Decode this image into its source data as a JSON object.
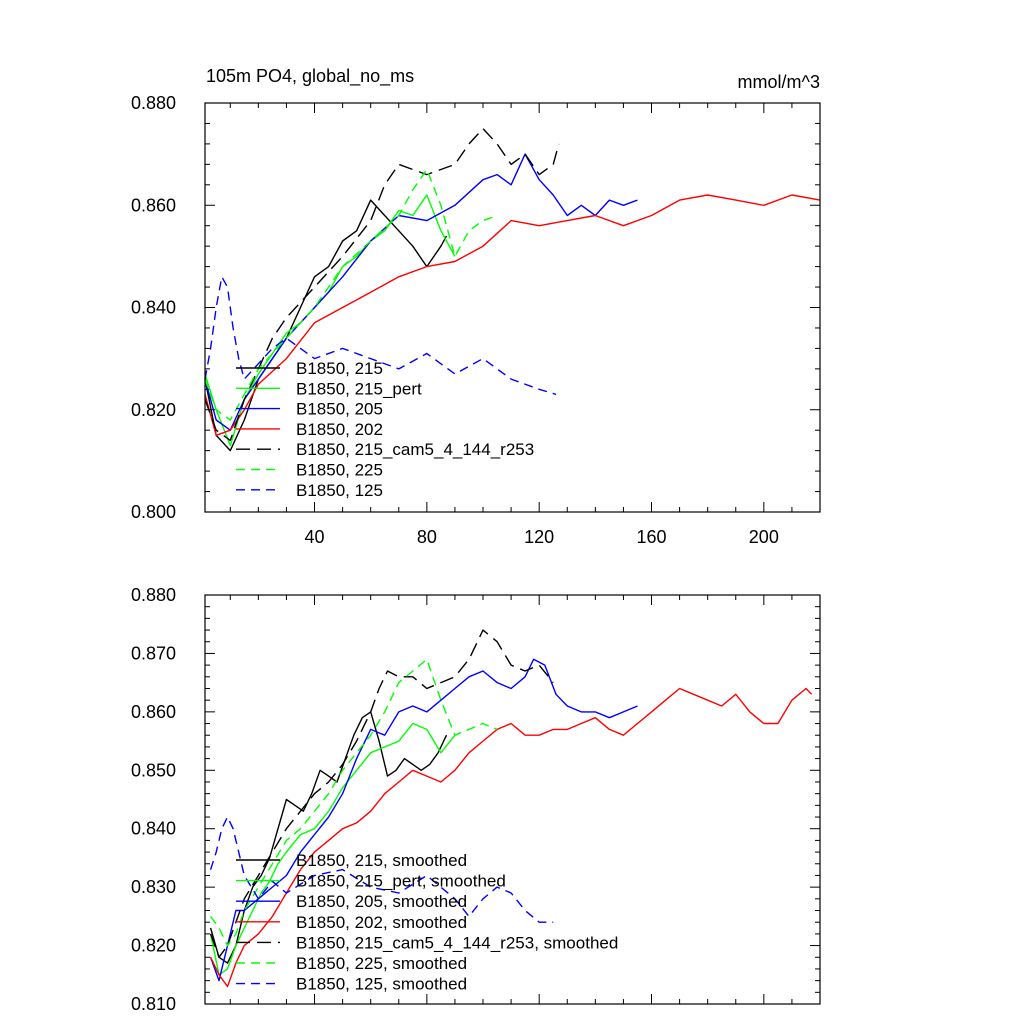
{
  "chart_data": [
    {
      "type": "line",
      "title": "105m PO4, global_no_ms",
      "units": "mmol/m^3",
      "xlim": [
        1,
        220
      ],
      "ylim": [
        0.8,
        0.88
      ],
      "xticks": [
        40,
        80,
        120,
        160,
        200
      ],
      "xtick_labels": [
        "40",
        "80",
        "120",
        "160",
        "200"
      ],
      "yticks": [
        0.8,
        0.82,
        0.84,
        0.86,
        0.88
      ],
      "ytick_labels": [
        "0.800",
        "0.820",
        "0.840",
        "0.860",
        "0.880"
      ],
      "legend_position": "lower-left",
      "series": [
        {
          "name": "B1850, 215",
          "label": "B1850, 215",
          "color": "#000000",
          "dash": "solid",
          "x": [
            1,
            5,
            10,
            15,
            20,
            25,
            30,
            35,
            40,
            45,
            50,
            55,
            60,
            65,
            70,
            75,
            80,
            85,
            87
          ],
          "y": [
            0.826,
            0.815,
            0.812,
            0.818,
            0.826,
            0.83,
            0.834,
            0.84,
            0.846,
            0.848,
            0.853,
            0.855,
            0.861,
            0.858,
            0.855,
            0.852,
            0.848,
            0.852,
            0.854
          ]
        },
        {
          "name": "B1850, 215_pert",
          "label": "B1850, 215_pert",
          "color": "#00ff00",
          "dash": "solid",
          "x": [
            1,
            5,
            10,
            15,
            20,
            25,
            30,
            35,
            40,
            45,
            50,
            55,
            60,
            65,
            70,
            75,
            80,
            85,
            90
          ],
          "y": [
            0.827,
            0.82,
            0.813,
            0.822,
            0.827,
            0.831,
            0.835,
            0.837,
            0.84,
            0.843,
            0.848,
            0.85,
            0.853,
            0.855,
            0.859,
            0.858,
            0.862,
            0.855,
            0.85
          ]
        },
        {
          "name": "B1850, 205",
          "label": "B1850, 205",
          "color": "#0000ff",
          "dash": "solid",
          "x": [
            1,
            5,
            10,
            15,
            20,
            25,
            30,
            40,
            50,
            60,
            70,
            80,
            90,
            100,
            105,
            110,
            115,
            120,
            125,
            130,
            135,
            140,
            145,
            150,
            155
          ],
          "y": [
            0.826,
            0.818,
            0.816,
            0.822,
            0.826,
            0.83,
            0.834,
            0.84,
            0.846,
            0.853,
            0.858,
            0.857,
            0.86,
            0.865,
            0.866,
            0.864,
            0.87,
            0.865,
            0.862,
            0.858,
            0.86,
            0.858,
            0.861,
            0.86,
            0.861
          ]
        },
        {
          "name": "B1850, 202",
          "label": "B1850, 202",
          "color": "#ff0000",
          "dash": "solid",
          "x": [
            1,
            5,
            10,
            15,
            20,
            30,
            40,
            50,
            60,
            70,
            80,
            90,
            100,
            110,
            120,
            130,
            140,
            150,
            160,
            170,
            180,
            190,
            200,
            210,
            220
          ],
          "y": [
            0.823,
            0.815,
            0.816,
            0.82,
            0.825,
            0.83,
            0.837,
            0.84,
            0.843,
            0.846,
            0.848,
            0.849,
            0.852,
            0.857,
            0.856,
            0.857,
            0.858,
            0.856,
            0.858,
            0.861,
            0.862,
            0.861,
            0.86,
            0.862,
            0.861
          ]
        },
        {
          "name": "B1850, 215_cam5_4_144_r253",
          "label": "B1850, 215_cam5_4_144_r253",
          "color": "#000000",
          "dash": "long",
          "x": [
            1,
            5,
            10,
            15,
            20,
            25,
            30,
            40,
            50,
            60,
            65,
            70,
            80,
            90,
            95,
            100,
            105,
            110,
            115,
            120,
            125,
            127
          ],
          "y": [
            0.822,
            0.816,
            0.814,
            0.822,
            0.828,
            0.834,
            0.838,
            0.844,
            0.85,
            0.857,
            0.864,
            0.868,
            0.866,
            0.868,
            0.872,
            0.875,
            0.872,
            0.868,
            0.87,
            0.866,
            0.868,
            0.872
          ]
        },
        {
          "name": "B1850, 225",
          "label": "B1850, 225",
          "color": "#00ff00",
          "dash": "medium",
          "x": [
            1,
            5,
            10,
            15,
            20,
            30,
            40,
            50,
            60,
            70,
            75,
            80,
            85,
            90,
            95,
            100,
            105
          ],
          "y": [
            0.826,
            0.82,
            0.818,
            0.823,
            0.828,
            0.834,
            0.84,
            0.848,
            0.853,
            0.858,
            0.863,
            0.867,
            0.86,
            0.85,
            0.855,
            0.857,
            0.858
          ]
        },
        {
          "name": "B1850, 125",
          "label": "B1850, 125",
          "color": "#0000ff",
          "dash": "medium",
          "x": [
            1,
            3,
            5,
            7,
            9,
            11,
            13,
            15,
            20,
            25,
            30,
            40,
            50,
            60,
            70,
            80,
            90,
            100,
            110,
            120,
            126
          ],
          "y": [
            0.826,
            0.832,
            0.84,
            0.846,
            0.844,
            0.836,
            0.83,
            0.826,
            0.829,
            0.832,
            0.834,
            0.83,
            0.832,
            0.83,
            0.828,
            0.831,
            0.827,
            0.83,
            0.826,
            0.824,
            0.823
          ]
        }
      ]
    },
    {
      "type": "line",
      "title": "",
      "xlim": [
        1,
        220
      ],
      "ylim": [
        0.81,
        0.88
      ],
      "xticks": [
        40,
        80,
        120,
        160,
        200
      ],
      "xtick_labels": [],
      "yticks": [
        0.81,
        0.82,
        0.83,
        0.84,
        0.85,
        0.86,
        0.87,
        0.88
      ],
      "ytick_labels": [
        "0.810",
        "0.820",
        "0.830",
        "0.840",
        "0.850",
        "0.860",
        "0.870",
        "0.880"
      ],
      "legend_position": "lower-left",
      "series": [
        {
          "name": "B1850, 215, smoothed",
          "label": "B1850, 215, smoothed",
          "color": "#000000",
          "dash": "solid",
          "x": [
            3,
            6,
            9,
            12,
            15,
            18,
            21,
            24,
            27,
            30,
            33,
            36,
            39,
            42,
            45,
            48,
            51,
            54,
            57,
            60,
            63,
            66,
            69,
            72,
            75,
            78,
            81,
            84,
            87
          ],
          "y": [
            0.823,
            0.818,
            0.817,
            0.82,
            0.826,
            0.83,
            0.832,
            0.835,
            0.84,
            0.845,
            0.844,
            0.843,
            0.846,
            0.85,
            0.849,
            0.848,
            0.852,
            0.856,
            0.859,
            0.86,
            0.855,
            0.849,
            0.85,
            0.852,
            0.851,
            0.85,
            0.851,
            0.853,
            0.856
          ]
        },
        {
          "name": "B1850, 215_pert, smoothed",
          "label": "B1850, 215_pert, smoothed",
          "color": "#00ff00",
          "dash": "solid",
          "x": [
            3,
            6,
            9,
            12,
            15,
            18,
            21,
            24,
            27,
            30,
            35,
            40,
            45,
            50,
            55,
            60,
            65,
            70,
            75,
            80,
            85,
            90
          ],
          "y": [
            0.822,
            0.815,
            0.816,
            0.82,
            0.823,
            0.826,
            0.829,
            0.831,
            0.834,
            0.836,
            0.839,
            0.84,
            0.843,
            0.847,
            0.85,
            0.853,
            0.854,
            0.855,
            0.858,
            0.857,
            0.853,
            0.856
          ]
        },
        {
          "name": "B1850, 205, smoothed",
          "label": "B1850, 205, smoothed",
          "color": "#0000ff",
          "dash": "solid",
          "x": [
            3,
            6,
            9,
            12,
            15,
            20,
            25,
            30,
            35,
            40,
            45,
            50,
            55,
            60,
            65,
            70,
            75,
            80,
            85,
            90,
            95,
            100,
            105,
            110,
            115,
            118,
            122,
            126,
            130,
            135,
            140,
            145,
            150,
            155
          ],
          "y": [
            0.818,
            0.814,
            0.82,
            0.826,
            0.826,
            0.828,
            0.83,
            0.832,
            0.836,
            0.839,
            0.842,
            0.846,
            0.852,
            0.857,
            0.856,
            0.86,
            0.861,
            0.86,
            0.862,
            0.864,
            0.866,
            0.867,
            0.865,
            0.864,
            0.866,
            0.869,
            0.868,
            0.863,
            0.861,
            0.86,
            0.86,
            0.859,
            0.86,
            0.861
          ]
        },
        {
          "name": "B1850, 202, smoothed",
          "label": "B1850, 202, smoothed",
          "color": "#ff0000",
          "dash": "solid",
          "x": [
            3,
            6,
            9,
            12,
            15,
            20,
            25,
            30,
            35,
            40,
            45,
            50,
            55,
            60,
            65,
            70,
            75,
            80,
            85,
            90,
            95,
            100,
            105,
            110,
            115,
            120,
            125,
            130,
            135,
            140,
            145,
            150,
            155,
            160,
            165,
            170,
            175,
            180,
            185,
            190,
            195,
            200,
            205,
            210,
            215,
            217
          ],
          "y": [
            0.818,
            0.815,
            0.813,
            0.817,
            0.82,
            0.822,
            0.825,
            0.829,
            0.833,
            0.836,
            0.838,
            0.84,
            0.841,
            0.843,
            0.846,
            0.848,
            0.85,
            0.849,
            0.848,
            0.85,
            0.853,
            0.855,
            0.857,
            0.858,
            0.856,
            0.856,
            0.857,
            0.857,
            0.858,
            0.859,
            0.857,
            0.856,
            0.858,
            0.86,
            0.862,
            0.864,
            0.863,
            0.862,
            0.861,
            0.863,
            0.86,
            0.858,
            0.858,
            0.862,
            0.864,
            0.863
          ]
        },
        {
          "name": "B1850, 215_cam5_4_144_r253, smoothed",
          "label": "B1850, 215_cam5_4_144_r253, smoothed",
          "color": "#000000",
          "dash": "long",
          "x": [
            3,
            6,
            9,
            12,
            15,
            20,
            25,
            30,
            35,
            40,
            45,
            50,
            55,
            60,
            63,
            66,
            70,
            75,
            80,
            85,
            90,
            95,
            100,
            105,
            110,
            115,
            120,
            125
          ],
          "y": [
            0.822,
            0.818,
            0.82,
            0.824,
            0.828,
            0.832,
            0.836,
            0.84,
            0.843,
            0.846,
            0.848,
            0.851,
            0.855,
            0.86,
            0.864,
            0.867,
            0.866,
            0.866,
            0.864,
            0.865,
            0.866,
            0.869,
            0.874,
            0.872,
            0.868,
            0.867,
            0.868,
            0.865
          ]
        },
        {
          "name": "B1850, 225, smoothed",
          "label": "B1850, 225, smoothed",
          "color": "#00ff00",
          "dash": "medium",
          "x": [
            3,
            6,
            9,
            12,
            15,
            20,
            25,
            30,
            35,
            40,
            45,
            50,
            55,
            60,
            65,
            70,
            75,
            80,
            85,
            90,
            95,
            100,
            105
          ],
          "y": [
            0.825,
            0.823,
            0.82,
            0.822,
            0.826,
            0.83,
            0.834,
            0.838,
            0.84,
            0.843,
            0.846,
            0.85,
            0.853,
            0.856,
            0.86,
            0.865,
            0.867,
            0.869,
            0.862,
            0.856,
            0.857,
            0.858,
            0.857
          ]
        },
        {
          "name": "B1850, 125, smoothed",
          "label": "B1850, 125, smoothed",
          "color": "#0000ff",
          "dash": "medium",
          "x": [
            3,
            5,
            7,
            9,
            11,
            13,
            15,
            20,
            25,
            30,
            40,
            50,
            60,
            70,
            80,
            90,
            95,
            100,
            105,
            110,
            115,
            120,
            125
          ],
          "y": [
            0.833,
            0.836,
            0.84,
            0.842,
            0.84,
            0.836,
            0.832,
            0.828,
            0.831,
            0.829,
            0.832,
            0.833,
            0.83,
            0.829,
            0.832,
            0.828,
            0.825,
            0.828,
            0.83,
            0.829,
            0.826,
            0.824,
            0.824
          ]
        }
      ]
    }
  ]
}
